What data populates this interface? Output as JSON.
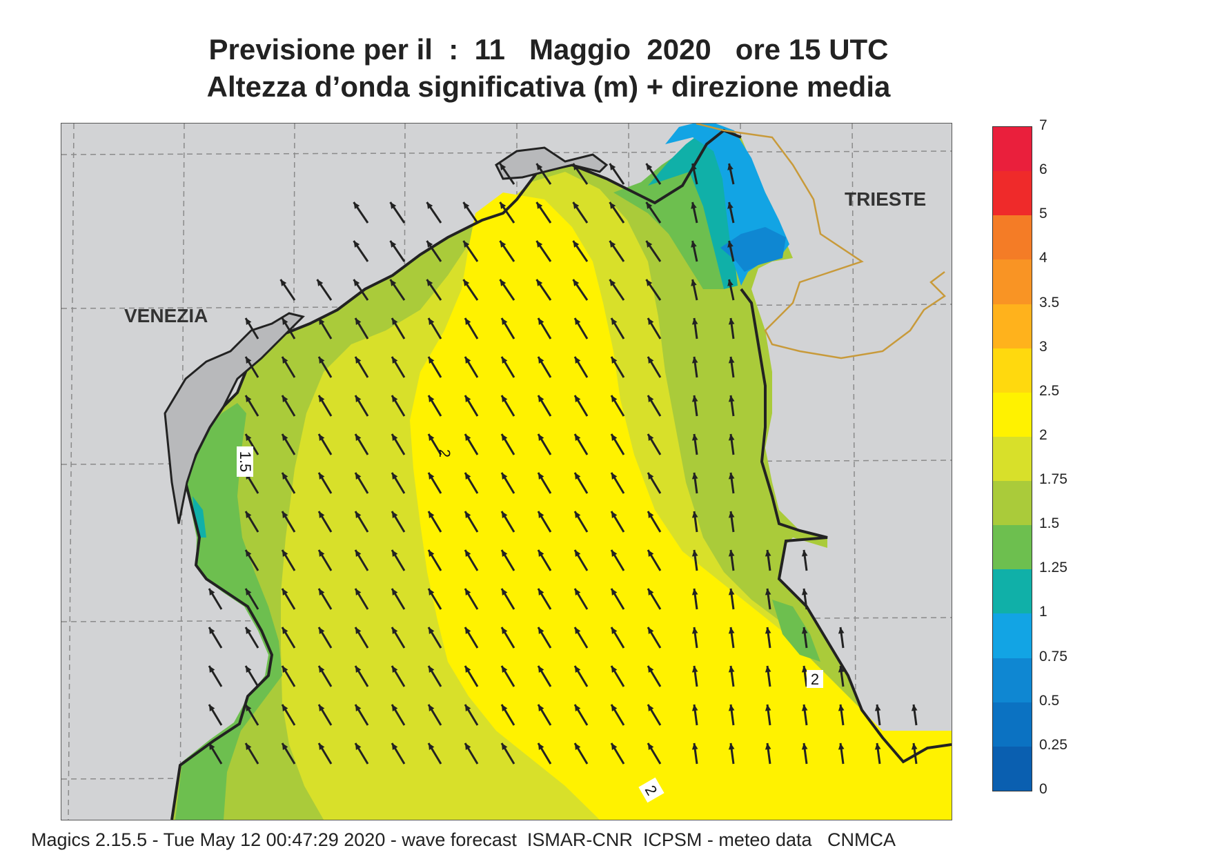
{
  "title": {
    "line1": "Previsione per il  :  11   Maggio  2020   ore 15 UTC",
    "line2": "Altezza d’onda significativa (m) + direzione media"
  },
  "map": {
    "cities": {
      "venezia": "VENEZIA",
      "trieste": "TRIESTE"
    },
    "contour_labels": [
      "1.5",
      "2",
      "2",
      "2"
    ],
    "arrow_direction": "north-west"
  },
  "legend": {
    "bands": [
      {
        "label": "0",
        "color": "#0a5fb0"
      },
      {
        "label": "0.25",
        "color": "#0b72c2"
      },
      {
        "label": "0.5",
        "color": "#0f87d2"
      },
      {
        "label": "0.75",
        "color": "#12a4e4"
      },
      {
        "label": "1",
        "color": "#10b0a8"
      },
      {
        "label": "1.25",
        "color": "#6dbf4f"
      },
      {
        "label": "1.5",
        "color": "#aacb3a"
      },
      {
        "label": "1.75",
        "color": "#d8e02a"
      },
      {
        "label": "2",
        "color": "#fff200"
      },
      {
        "label": "2.5",
        "color": "#ffd90e"
      },
      {
        "label": "3",
        "color": "#ffb21c"
      },
      {
        "label": "3.5",
        "color": "#f99424"
      },
      {
        "label": "4",
        "color": "#f47c26"
      },
      {
        "label": "5",
        "color": "#ef2a2a"
      },
      {
        "label": "6",
        "color": "#ea1f3c"
      },
      {
        "label": "7",
        "color": "#e8175d"
      }
    ],
    "top_label": "7"
  },
  "footer": "Magics 2.15.5 - Tue May 12 00:47:29 2020 - wave forecast  ISMAR-CNR  ICPSM - meteo data   CNMCA"
}
